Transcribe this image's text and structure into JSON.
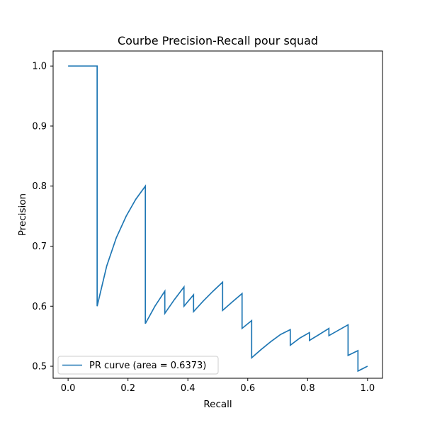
{
  "chart_data": {
    "type": "line",
    "title": "Courbe Precision-Recall pour squad",
    "xlabel": "Recall",
    "ylabel": "Precision",
    "xlim": [
      -0.05,
      1.05
    ],
    "ylim": [
      0.48,
      1.025
    ],
    "xticks": [
      "0.0",
      "0.2",
      "0.4",
      "0.6",
      "0.8",
      "1.0"
    ],
    "yticks": [
      "0.5",
      "0.6",
      "0.7",
      "0.8",
      "0.9",
      "1.0"
    ],
    "grid": false,
    "legend_position": "lower left",
    "line_color": "#1f77b4",
    "series": [
      {
        "name": "PR curve (area = 0.6373)",
        "x": [
          0.0,
          0.097,
          0.097,
          0.129,
          0.161,
          0.194,
          0.226,
          0.258,
          0.258,
          0.29,
          0.323,
          0.323,
          0.355,
          0.387,
          0.387,
          0.419,
          0.419,
          0.452,
          0.484,
          0.516,
          0.516,
          0.548,
          0.581,
          0.581,
          0.613,
          0.613,
          0.645,
          0.677,
          0.71,
          0.742,
          0.742,
          0.774,
          0.806,
          0.806,
          0.839,
          0.871,
          0.871,
          0.903,
          0.935,
          0.935,
          0.968,
          0.968,
          1.0
        ],
        "y": [
          1.0,
          1.0,
          0.6,
          0.667,
          0.714,
          0.75,
          0.778,
          0.8,
          0.571,
          0.6,
          0.625,
          0.588,
          0.611,
          0.632,
          0.6,
          0.619,
          0.591,
          0.609,
          0.625,
          0.64,
          0.593,
          0.607,
          0.621,
          0.563,
          0.576,
          0.514,
          0.528,
          0.541,
          0.553,
          0.561,
          0.535,
          0.547,
          0.556,
          0.543,
          0.553,
          0.563,
          0.551,
          0.56,
          0.569,
          0.518,
          0.526,
          0.492,
          0.5
        ]
      }
    ]
  }
}
